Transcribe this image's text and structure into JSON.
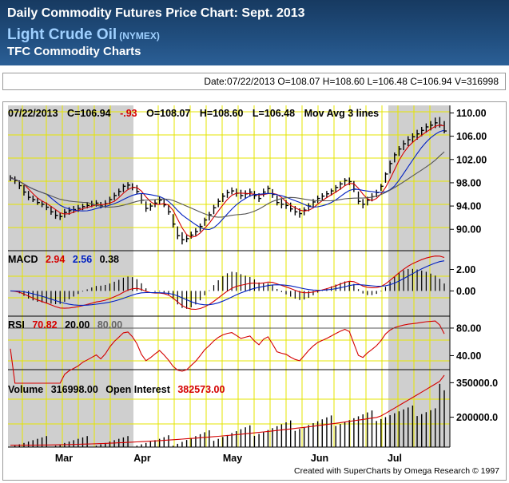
{
  "header": {
    "title": "Daily Commodity Futures Price Chart: Sept. 2013",
    "commodity": "Light Crude Oil",
    "exchange": "(NYMEX)",
    "subtitle": "TFC Commodity Charts"
  },
  "quote_line": "Date:07/22/2013 O=108.07 H=108.60 L=106.48 C=106.94 V=316998",
  "chart_data": {
    "type": "line",
    "x_labels": [
      "Mar",
      "Apr",
      "May",
      "Jun",
      "Jul"
    ],
    "credit": "Created with SuperCharts by Omega Research © 1997",
    "shading": "Mar and Jul periods shaded gray",
    "price_panel": {
      "header": {
        "date": "07/22/2013",
        "close": "C=106.94",
        "change": "-.93",
        "open": "O=108.07",
        "high": "H=108.60",
        "low": "L=106.48",
        "study": "Mov Avg 3 lines"
      },
      "y_ticks": [
        "110.00",
        "106.00",
        "102.00",
        "98.00",
        "94.00",
        "90.00"
      ],
      "ylim": [
        86.6,
        111.3
      ],
      "bars": [
        [
          99.3,
          98.3,
          98.8
        ],
        [
          99.1,
          97.8,
          98.4
        ],
        [
          98.4,
          96.9,
          97.5
        ],
        [
          97.6,
          95.8,
          96.4
        ],
        [
          96.6,
          95.0,
          95.5
        ],
        [
          95.8,
          94.7,
          95.1
        ],
        [
          95.4,
          94.2,
          94.6
        ],
        [
          94.9,
          93.8,
          94.3
        ],
        [
          94.6,
          93.3,
          93.8
        ],
        [
          94.0,
          92.5,
          93.0
        ],
        [
          93.3,
          91.8,
          92.4
        ],
        [
          92.8,
          91.6,
          92.2
        ],
        [
          93.5,
          92.0,
          92.9
        ],
        [
          93.8,
          92.5,
          93.2
        ],
        [
          94.0,
          92.8,
          93.4
        ],
        [
          94.2,
          93.0,
          93.6
        ],
        [
          94.4,
          93.3,
          93.9
        ],
        [
          94.7,
          93.6,
          94.1
        ],
        [
          94.9,
          93.8,
          94.3
        ],
        [
          95.0,
          93.9,
          94.5
        ],
        [
          94.7,
          93.6,
          94.0
        ],
        [
          95.0,
          93.7,
          94.4
        ],
        [
          95.6,
          94.3,
          95.1
        ],
        [
          96.3,
          95.0,
          95.8
        ],
        [
          97.0,
          95.7,
          96.5
        ],
        [
          97.8,
          96.4,
          97.4
        ],
        [
          98.1,
          96.9,
          97.6
        ],
        [
          97.9,
          96.7,
          97.2
        ],
        [
          97.6,
          96.0,
          96.5
        ],
        [
          96.2,
          94.4,
          95.0
        ],
        [
          94.8,
          93.0,
          93.6
        ],
        [
          94.5,
          93.2,
          94.0
        ],
        [
          95.1,
          93.8,
          94.5
        ],
        [
          95.6,
          94.3,
          95.0
        ],
        [
          95.3,
          93.8,
          94.2
        ],
        [
          94.2,
          92.5,
          93.0
        ],
        [
          92.6,
          90.3,
          90.9
        ],
        [
          90.5,
          88.3,
          88.9
        ],
        [
          89.5,
          87.4,
          88.2
        ],
        [
          89.0,
          87.8,
          88.4
        ],
        [
          89.6,
          88.4,
          89.0
        ],
        [
          90.2,
          88.9,
          89.6
        ],
        [
          91.0,
          89.6,
          90.5
        ],
        [
          92.0,
          90.6,
          91.6
        ],
        [
          93.0,
          91.5,
          92.5
        ],
        [
          94.2,
          92.6,
          93.7
        ],
        [
          95.3,
          93.8,
          94.8
        ],
        [
          96.2,
          94.7,
          95.7
        ],
        [
          96.8,
          95.4,
          96.3
        ],
        [
          97.2,
          96.0,
          96.6
        ],
        [
          97.0,
          95.6,
          96.2
        ],
        [
          96.8,
          95.2,
          95.8
        ],
        [
          96.7,
          95.3,
          96.1
        ],
        [
          97.0,
          95.6,
          96.4
        ],
        [
          96.6,
          95.2,
          95.8
        ],
        [
          96.2,
          94.7,
          95.3
        ],
        [
          97.0,
          95.6,
          96.4
        ],
        [
          97.5,
          96.2,
          97.0
        ],
        [
          96.9,
          95.4,
          96.0
        ],
        [
          95.8,
          94.1,
          94.6
        ],
        [
          95.2,
          93.6,
          94.3
        ],
        [
          95.0,
          93.5,
          94.1
        ],
        [
          94.6,
          93.0,
          93.5
        ],
        [
          94.0,
          92.4,
          93.0
        ],
        [
          93.6,
          92.0,
          92.7
        ],
        [
          93.8,
          92.4,
          93.3
        ],
        [
          94.5,
          93.1,
          94.0
        ],
        [
          95.2,
          93.8,
          94.7
        ],
        [
          95.8,
          94.5,
          95.3
        ],
        [
          96.2,
          95.0,
          95.7
        ],
        [
          96.6,
          95.4,
          96.1
        ],
        [
          97.0,
          95.8,
          96.6
        ],
        [
          97.6,
          96.3,
          97.2
        ],
        [
          98.2,
          96.8,
          97.8
        ],
        [
          98.8,
          97.5,
          98.4
        ],
        [
          98.9,
          97.6,
          98.2
        ],
        [
          98.3,
          96.4,
          96.9
        ],
        [
          96.5,
          94.3,
          94.8
        ],
        [
          95.2,
          93.6,
          94.3
        ],
        [
          95.6,
          94.1,
          95.0
        ],
        [
          96.2,
          94.8,
          95.6
        ],
        [
          96.8,
          95.5,
          96.3
        ],
        [
          97.8,
          96.6,
          97.4
        ],
        [
          99.8,
          98.0,
          99.5
        ],
        [
          101.8,
          99.6,
          101.3
        ],
        [
          103.2,
          101.5,
          102.8
        ],
        [
          104.3,
          102.6,
          103.8
        ],
        [
          105.3,
          103.6,
          104.7
        ],
        [
          106.0,
          104.3,
          105.4
        ],
        [
          106.5,
          104.9,
          105.9
        ],
        [
          107.1,
          105.4,
          106.4
        ],
        [
          107.6,
          106.0,
          107.0
        ],
        [
          108.2,
          106.6,
          107.6
        ],
        [
          108.6,
          107.0,
          107.9
        ],
        [
          109.2,
          107.4,
          108.3
        ],
        [
          109.3,
          107.5,
          107.9
        ],
        [
          108.6,
          106.5,
          106.9
        ]
      ]
    },
    "macd_panel": {
      "header": {
        "label": "MACD",
        "macd": "2.94",
        "signal": "2.56",
        "hist": "0.38"
      },
      "y_ticks": [
        "2.00",
        "0.00"
      ],
      "ylim": [
        -2.2,
        3.6
      ]
    },
    "rsi_panel": {
      "header": {
        "label": "RSI",
        "value": "70.82",
        "lower": "20.00",
        "upper": "80.00"
      },
      "y_ticks": [
        "80.00",
        "40.00"
      ],
      "ylim": [
        22,
        95
      ]
    },
    "volume_panel": {
      "header": {
        "label": "Volume",
        "volume": "316998.00",
        "oi_label": "Open Interest",
        "oi": "382573.00"
      },
      "y_ticks": [
        "350000.0",
        "200000.0"
      ],
      "ylim": [
        70000,
        400000
      ],
      "last_open_interest": 382573
    }
  },
  "colors": {
    "header_bg": "#1d4572",
    "shade": "#cfcfcf",
    "grid": "#e4e400",
    "price": "#000000",
    "ma_fast": "#d40000",
    "ma_mid": "#0020c0",
    "ma_slow": "#555555",
    "macd_line": "#d40000",
    "signal_line": "#0020c0",
    "rsi_line": "#d40000",
    "open_interest": "#d40000"
  }
}
